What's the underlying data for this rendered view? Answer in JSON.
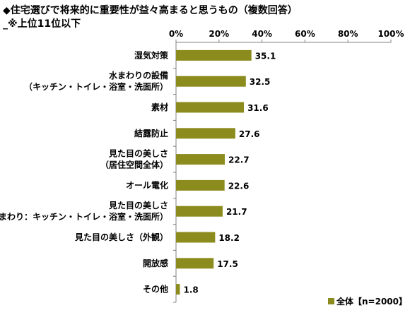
{
  "title": "◆住宅選びで将来的に重要性が益々高まると思うもの（複数回答）",
  "subtitle": "_※上位11位以下",
  "colors": {
    "bar": "#8c8c1e",
    "grid": "#808080"
  },
  "chart_data": {
    "type": "bar",
    "orientation": "horizontal",
    "title": "◆住宅選びで将来的に重要性が益々高まると思うもの（複数回答）",
    "xlim": [
      0,
      100
    ],
    "x_ticks": [
      "0%",
      "20%",
      "40%",
      "60%",
      "80%",
      "100%"
    ],
    "x_tick_values": [
      0,
      20,
      40,
      60,
      80,
      100
    ],
    "categories": [
      [
        "湿気対策"
      ],
      [
        "水まわりの設備",
        "（キッチン・トイレ・浴室・洗面所）"
      ],
      [
        "素材"
      ],
      [
        "結露防止"
      ],
      [
        "見た目の美しさ",
        "（居住空間全体）"
      ],
      [
        "オール電化"
      ],
      [
        "見た目の美しさ",
        "（水まわり：キッチン・トイレ・浴室・洗面所）"
      ],
      [
        "見た目の美しさ（外観）"
      ],
      [
        "開放感"
      ],
      [
        "その他"
      ]
    ],
    "series": [
      {
        "name": "全体【n=2000】",
        "values": [
          35.1,
          32.5,
          31.6,
          27.6,
          22.7,
          22.6,
          21.7,
          18.2,
          17.5,
          1.8
        ]
      }
    ],
    "value_labels": [
      "35.1",
      "32.5",
      "31.6",
      "27.6",
      "22.7",
      "22.6",
      "21.7",
      "18.2",
      "17.5",
      "1.8"
    ],
    "legend_position": "bottom-right",
    "grid": false
  }
}
